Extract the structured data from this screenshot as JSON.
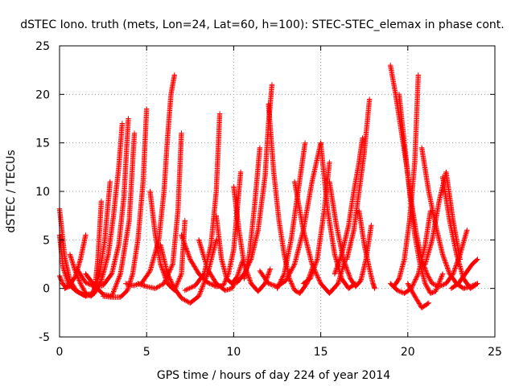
{
  "chart_data": {
    "type": "scatter",
    "title": "dSTEC Iono. truth (mets, Lon=24, Lat=60, h=100): STEC-STEC_elemax in phase cont.",
    "xlabel": "GPS time / hours of day 224 of year 2014",
    "ylabel": "dSTEC  / TECUs",
    "xlim": [
      0,
      25
    ],
    "ylim": [
      -5,
      25
    ],
    "xticks": [
      "0",
      "5",
      "10",
      "15",
      "20",
      "25"
    ],
    "yticks": [
      "-5",
      "0",
      "5",
      "10",
      "15",
      "20",
      "25"
    ],
    "grid": true,
    "legend": "none",
    "marker": "plus",
    "color": "#ff0000",
    "passes": [
      {
        "t": [
          0.0,
          0.3,
          0.6,
          1.0,
          1.5,
          2.0,
          2.4,
          2.8,
          3.1,
          3.4,
          3.6
        ],
        "v": [
          8.2,
          3.2,
          0.8,
          -0.3,
          -0.8,
          -0.5,
          0.8,
          3.5,
          7.5,
          12.5,
          17.0
        ]
      },
      {
        "t": [
          0.0,
          0.2,
          0.5,
          0.9,
          1.4,
          1.9,
          2.3,
          2.6,
          2.9
        ],
        "v": [
          5.5,
          2.2,
          0.5,
          -0.2,
          -0.7,
          -0.5,
          1.5,
          5.0,
          11.0
        ]
      },
      {
        "t": [
          0.0,
          0.2,
          0.4,
          0.7
        ],
        "v": [
          1.3,
          0.4,
          0.1,
          0.3
        ]
      },
      {
        "t": [
          0.3,
          0.6,
          0.9,
          1.2,
          1.5
        ],
        "v": [
          0.0,
          0.4,
          1.2,
          3.0,
          5.5
        ]
      },
      {
        "t": [
          0.6,
          0.9,
          1.2,
          1.5,
          1.8,
          2.0,
          2.2,
          2.4
        ],
        "v": [
          3.5,
          1.8,
          0.5,
          -0.5,
          -0.8,
          -0.5,
          3.0,
          9.0
        ]
      },
      {
        "t": [
          1.0,
          1.5,
          2.0,
          2.5,
          3.0,
          3.4,
          3.7,
          3.95
        ],
        "v": [
          2.0,
          0.6,
          0.2,
          0.3,
          1.5,
          4.5,
          9.5,
          17.5
        ]
      },
      {
        "t": [
          1.5,
          2.0,
          2.5,
          3.0,
          3.5,
          4.0,
          4.3
        ],
        "v": [
          1.5,
          0.3,
          -0.6,
          -0.8,
          1.5,
          7.0,
          16.0
        ]
      },
      {
        "t": [
          2.5,
          3.0,
          3.5,
          3.9,
          4.2,
          4.5,
          4.8,
          5.0
        ],
        "v": [
          -0.8,
          -0.9,
          -0.9,
          -0.2,
          1.5,
          5.0,
          11.0,
          18.5
        ]
      },
      {
        "t": [
          3.8,
          4.2,
          4.7,
          5.2,
          5.7,
          6.0,
          6.2,
          6.4,
          6.6
        ],
        "v": [
          0.5,
          0.3,
          0.5,
          1.8,
          5.0,
          10.0,
          15.5,
          20.0,
          22.0
        ]
      },
      {
        "t": [
          4.5,
          5.0,
          5.5,
          6.0,
          6.5,
          6.8,
          7.0
        ],
        "v": [
          0.5,
          0.2,
          0.0,
          0.5,
          2.5,
          8.0,
          16.0
        ]
      },
      {
        "t": [
          5.2,
          5.5,
          5.8,
          6.2,
          6.6,
          7.0,
          7.2
        ],
        "v": [
          10.0,
          5.5,
          2.5,
          0.5,
          -0.2,
          1.5,
          7.0
        ]
      },
      {
        "t": [
          5.8,
          6.2,
          6.6,
          7.0,
          7.5,
          8.0,
          8.5,
          9.0
        ],
        "v": [
          4.5,
          1.5,
          0.0,
          -1.0,
          -1.5,
          -0.8,
          1.5,
          5.0
        ]
      },
      {
        "t": [
          7.2,
          7.8,
          8.3,
          8.7,
          9.0,
          9.2
        ],
        "v": [
          -0.2,
          0.3,
          1.5,
          4.5,
          10.0,
          18.0
        ]
      },
      {
        "t": [
          7.0,
          7.5,
          8.0,
          8.5,
          9.0,
          9.4,
          9.7,
          10.0,
          10.2,
          10.4
        ],
        "v": [
          5.5,
          3.0,
          1.5,
          0.6,
          0.2,
          0.3,
          1.5,
          4.0,
          8.0,
          12.0
        ]
      },
      {
        "t": [
          8.0,
          8.5,
          9.0,
          9.5,
          9.9,
          10.2
        ],
        "v": [
          5.0,
          2.0,
          0.5,
          -0.2,
          0.0,
          1.0
        ]
      },
      {
        "t": [
          9.0,
          9.3,
          9.6,
          9.9,
          10.2,
          10.5
        ],
        "v": [
          7.5,
          3.0,
          1.0,
          0.5,
          1.2,
          2.8
        ]
      },
      {
        "t": [
          10.0,
          10.3,
          10.6,
          11.0,
          11.4,
          11.8,
          12.1
        ],
        "v": [
          10.5,
          6.0,
          2.5,
          0.5,
          -0.3,
          0.5,
          2.0
        ]
      },
      {
        "t": [
          10.2,
          10.6,
          11.0,
          11.4,
          11.8,
          12.0,
          12.2
        ],
        "v": [
          0.6,
          1.5,
          3.0,
          6.0,
          11.5,
          17.0,
          21.0
        ]
      },
      {
        "t": [
          10.6,
          10.9,
          11.2,
          11.5
        ],
        "v": [
          1.0,
          3.5,
          8.5,
          14.5
        ]
      },
      {
        "t": [
          11.5,
          12.0,
          12.5,
          13.0,
          13.5,
          14.0,
          14.5,
          15.0
        ],
        "v": [
          1.8,
          0.5,
          0.2,
          0.8,
          2.5,
          6.0,
          11.0,
          15.0
        ]
      },
      {
        "t": [
          12.0,
          12.3,
          12.6,
          12.9,
          13.2,
          13.5,
          13.8,
          14.2,
          14.6
        ],
        "v": [
          19.0,
          12.0,
          7.0,
          3.5,
          1.0,
          -0.2,
          -0.5,
          0.5,
          2.5
        ]
      },
      {
        "t": [
          12.5,
          12.9,
          13.3,
          13.7,
          14.1
        ],
        "v": [
          0.0,
          1.5,
          5.0,
          10.0,
          15.0
        ]
      },
      {
        "t": [
          13.5,
          14.0,
          14.5,
          15.0,
          15.5,
          16.0,
          16.4
        ],
        "v": [
          11.0,
          6.0,
          2.5,
          0.5,
          -0.5,
          0.5,
          3.0
        ]
      },
      {
        "t": [
          14.0,
          14.4,
          14.8,
          15.2,
          15.5
        ],
        "v": [
          0.5,
          1.0,
          3.0,
          8.0,
          13.0
        ]
      },
      {
        "t": [
          15.0,
          15.4,
          15.8,
          16.2,
          16.6,
          17.0
        ],
        "v": [
          15.0,
          8.0,
          3.5,
          1.0,
          0.0,
          0.5
        ]
      },
      {
        "t": [
          15.5,
          15.9,
          16.3,
          16.7,
          17.0,
          17.3,
          17.6,
          17.9
        ],
        "v": [
          11.0,
          6.5,
          3.0,
          1.0,
          0.2,
          0.8,
          3.0,
          6.5
        ]
      },
      {
        "t": [
          15.8,
          16.2,
          16.6,
          16.9,
          17.2,
          17.4
        ],
        "v": [
          1.5,
          3.5,
          6.5,
          10.0,
          13.0,
          15.5
        ]
      },
      {
        "t": [
          16.5,
          16.9,
          17.2,
          17.5,
          17.8
        ],
        "v": [
          3.0,
          6.0,
          10.0,
          14.0,
          19.5
        ]
      },
      {
        "t": [
          17.2,
          17.5,
          17.8,
          18.0,
          18.1
        ],
        "v": [
          8.0,
          4.5,
          2.0,
          0.5,
          0.0
        ]
      },
      {
        "t": [
          19.0,
          19.3,
          19.6,
          19.9,
          20.2,
          20.5,
          20.8,
          21.1,
          21.4,
          21.8,
          22.2,
          22.6,
          23.0,
          23.4
        ],
        "v": [
          23.0,
          20.0,
          16.5,
          13.0,
          9.0,
          5.5,
          3.0,
          1.5,
          0.5,
          0.2,
          0.5,
          1.5,
          3.5,
          6.0
        ]
      },
      {
        "t": [
          19.5,
          19.8,
          20.1,
          20.4,
          20.7,
          21.0,
          21.3,
          21.6,
          22.0
        ],
        "v": [
          20.0,
          15.0,
          10.0,
          5.5,
          2.5,
          0.5,
          -0.5,
          -0.3,
          1.5
        ]
      },
      {
        "t": [
          19.2,
          19.5,
          19.8,
          20.1,
          20.4,
          20.6
        ],
        "v": [
          0.2,
          1.0,
          3.0,
          7.0,
          13.0,
          22.0
        ]
      },
      {
        "t": [
          19.0,
          19.4,
          19.8,
          20.2,
          20.6,
          21.0,
          21.3
        ],
        "v": [
          0.5,
          -0.2,
          -0.5,
          0.0,
          1.5,
          4.5,
          8.0
        ]
      },
      {
        "t": [
          20.0,
          20.4,
          20.8,
          21.2
        ],
        "v": [
          0.5,
          -0.8,
          -2.0,
          -1.5
        ]
      },
      {
        "t": [
          20.8,
          21.2,
          21.6,
          22.0,
          22.4,
          22.8,
          23.2,
          23.6,
          24.0
        ],
        "v": [
          14.5,
          10.0,
          6.5,
          3.5,
          1.5,
          0.5,
          0.0,
          0.2,
          0.5
        ]
      },
      {
        "t": [
          21.0,
          21.4,
          21.8,
          22.2,
          22.6,
          23.0
        ],
        "v": [
          2.5,
          5.0,
          9.0,
          12.0,
          7.0,
          3.0
        ]
      },
      {
        "t": [
          22.0,
          22.4,
          22.8,
          23.2,
          23.6,
          24.0
        ],
        "v": [
          11.5,
          7.0,
          3.5,
          1.0,
          0.0,
          0.5
        ]
      },
      {
        "t": [
          22.5,
          22.9,
          23.3,
          23.7,
          24.0
        ],
        "v": [
          0.0,
          0.5,
          1.5,
          2.5,
          3.0
        ]
      }
    ]
  }
}
